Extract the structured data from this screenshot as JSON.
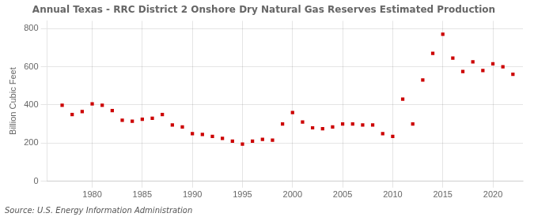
{
  "chart_data": {
    "type": "scatter",
    "title": "Annual Texas - RRC District 2 Onshore Dry Natural Gas Reserves Estimated Production",
    "ylabel": "Billion Cubic Feet",
    "annotations": [
      "Source: U.S. Energy Information Administration"
    ],
    "x": [
      1977,
      1978,
      1979,
      1980,
      1981,
      1982,
      1983,
      1984,
      1985,
      1986,
      1987,
      1988,
      1989,
      1990,
      1991,
      1992,
      1993,
      1994,
      1995,
      1996,
      1997,
      1998,
      1999,
      2000,
      2001,
      2002,
      2003,
      2004,
      2005,
      2006,
      2007,
      2008,
      2009,
      2010,
      2011,
      2012,
      2013,
      2014,
      2015,
      2016,
      2017,
      2018,
      2019,
      2020,
      2021,
      2022
    ],
    "values": [
      398,
      350,
      365,
      405,
      398,
      370,
      320,
      315,
      325,
      330,
      350,
      295,
      285,
      250,
      245,
      235,
      225,
      210,
      195,
      210,
      220,
      215,
      300,
      360,
      310,
      280,
      275,
      285,
      300,
      300,
      295,
      295,
      250,
      235,
      430,
      300,
      530,
      670,
      770,
      645,
      575,
      625,
      580,
      615,
      600,
      560
    ],
    "color": "#cc0000",
    "marker": "square",
    "xlim": [
      1975.5,
      2023
    ],
    "xticks": [
      1980,
      1985,
      1990,
      1995,
      2000,
      2005,
      2010,
      2015,
      2020
    ],
    "ylim": [
      0,
      840
    ],
    "yticks": [
      0,
      200,
      400,
      600,
      800
    ],
    "grid": true
  }
}
